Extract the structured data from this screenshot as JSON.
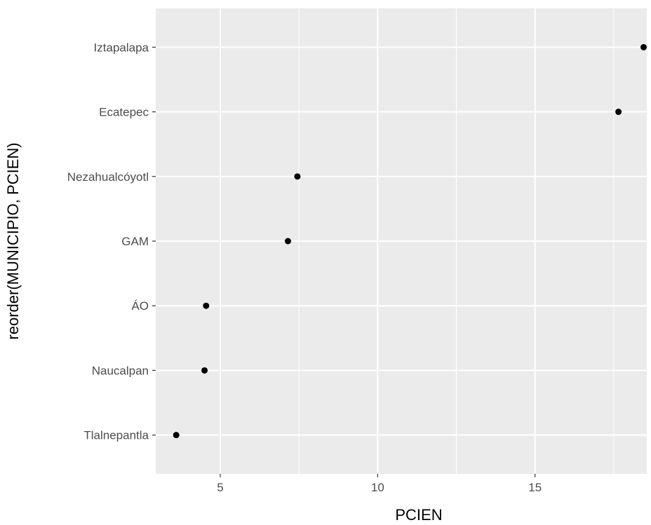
{
  "chart_data": {
    "type": "scatter",
    "xlabel": "PCIEN",
    "ylabel": "reorder(MUNICIPIO, PCIEN)",
    "xlim": [
      2.95,
      18.55
    ],
    "x_ticks": [
      5,
      10,
      15
    ],
    "categories": [
      "Tlalnepantla",
      "Naucalpan",
      "ÁO",
      "GAM",
      "Nezahualcóyotl",
      "Ecatepec",
      "Iztapalapa"
    ],
    "values": [
      3.6,
      4.5,
      4.55,
      7.15,
      7.45,
      17.65,
      18.45
    ],
    "grid": true,
    "panel_background": "#ebebeb",
    "grid_color": "#ffffff",
    "point_color": "#000000"
  }
}
